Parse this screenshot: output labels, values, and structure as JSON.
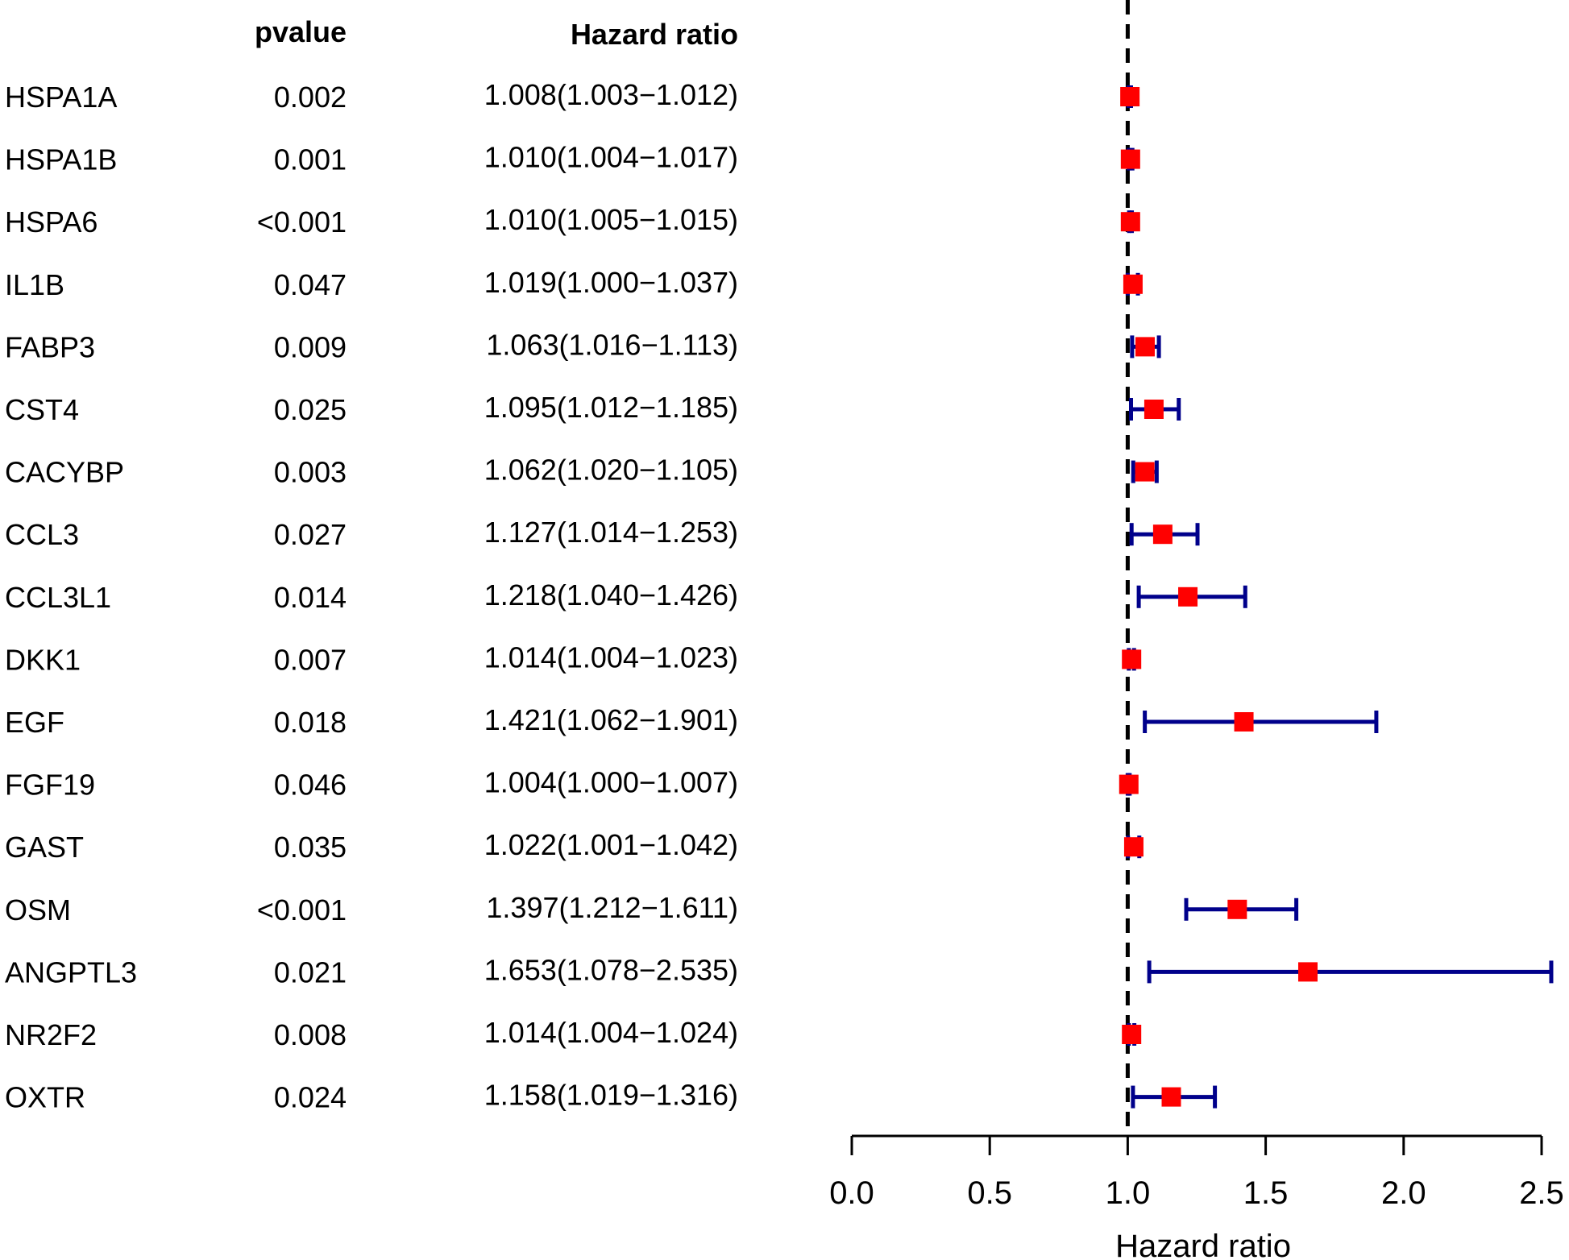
{
  "chart_data": {
    "type": "forest",
    "headers": {
      "pvalue": "pvalue",
      "hazard_ratio": "Hazard ratio"
    },
    "xlabel": "Hazard ratio",
    "xlim": [
      0,
      2.5
    ],
    "xticks": [
      0,
      0.5,
      1,
      1.5,
      2,
      2.5
    ],
    "xtick_labels": [
      "0.0",
      "0.5",
      "1.0",
      "1.5",
      "2.0",
      "2.5"
    ],
    "reference_line": 1.0,
    "colors": {
      "point": "#ff0000",
      "ci": "#00008b",
      "reference": "#000000",
      "axis": "#000000"
    },
    "rows": [
      {
        "gene": "HSPA1A",
        "pvalue": "0.002",
        "hr_text": "1.008(1.003−1.012)",
        "hr": 1.008,
        "lower": 1.003,
        "upper": 1.012
      },
      {
        "gene": "HSPA1B",
        "pvalue": "0.001",
        "hr_text": "1.010(1.004−1.017)",
        "hr": 1.01,
        "lower": 1.004,
        "upper": 1.017
      },
      {
        "gene": "HSPA6",
        "pvalue": "<0.001",
        "hr_text": "1.010(1.005−1.015)",
        "hr": 1.01,
        "lower": 1.005,
        "upper": 1.015
      },
      {
        "gene": "IL1B",
        "pvalue": "0.047",
        "hr_text": "1.019(1.000−1.037)",
        "hr": 1.019,
        "lower": 1.0,
        "upper": 1.037
      },
      {
        "gene": "FABP3",
        "pvalue": "0.009",
        "hr_text": "1.063(1.016−1.113)",
        "hr": 1.063,
        "lower": 1.016,
        "upper": 1.113
      },
      {
        "gene": "CST4",
        "pvalue": "0.025",
        "hr_text": "1.095(1.012−1.185)",
        "hr": 1.095,
        "lower": 1.012,
        "upper": 1.185
      },
      {
        "gene": "CACYBP",
        "pvalue": "0.003",
        "hr_text": "1.062(1.020−1.105)",
        "hr": 1.062,
        "lower": 1.02,
        "upper": 1.105
      },
      {
        "gene": "CCL3",
        "pvalue": "0.027",
        "hr_text": "1.127(1.014−1.253)",
        "hr": 1.127,
        "lower": 1.014,
        "upper": 1.253
      },
      {
        "gene": "CCL3L1",
        "pvalue": "0.014",
        "hr_text": "1.218(1.040−1.426)",
        "hr": 1.218,
        "lower": 1.04,
        "upper": 1.426
      },
      {
        "gene": "DKK1",
        "pvalue": "0.007",
        "hr_text": "1.014(1.004−1.023)",
        "hr": 1.014,
        "lower": 1.004,
        "upper": 1.023
      },
      {
        "gene": "EGF",
        "pvalue": "0.018",
        "hr_text": "1.421(1.062−1.901)",
        "hr": 1.421,
        "lower": 1.062,
        "upper": 1.901
      },
      {
        "gene": "FGF19",
        "pvalue": "0.046",
        "hr_text": "1.004(1.000−1.007)",
        "hr": 1.004,
        "lower": 1.0,
        "upper": 1.007
      },
      {
        "gene": "GAST",
        "pvalue": "0.035",
        "hr_text": "1.022(1.001−1.042)",
        "hr": 1.022,
        "lower": 1.001,
        "upper": 1.042
      },
      {
        "gene": "OSM",
        "pvalue": "<0.001",
        "hr_text": "1.397(1.212−1.611)",
        "hr": 1.397,
        "lower": 1.212,
        "upper": 1.611
      },
      {
        "gene": "ANGPTL3",
        "pvalue": "0.021",
        "hr_text": "1.653(1.078−2.535)",
        "hr": 1.653,
        "lower": 1.078,
        "upper": 2.535
      },
      {
        "gene": "NR2F2",
        "pvalue": "0.008",
        "hr_text": "1.014(1.004−1.024)",
        "hr": 1.014,
        "lower": 1.004,
        "upper": 1.024
      },
      {
        "gene": "OXTR",
        "pvalue": "0.024",
        "hr_text": "1.158(1.019−1.316)",
        "hr": 1.158,
        "lower": 1.019,
        "upper": 1.316
      }
    ]
  }
}
